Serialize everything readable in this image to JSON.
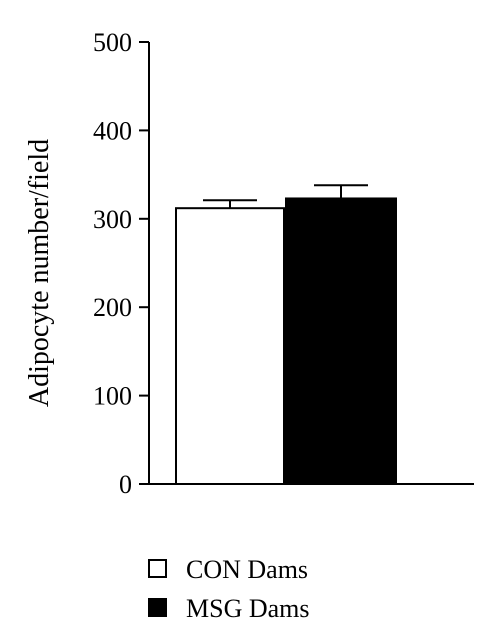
{
  "chart_data": {
    "type": "bar",
    "title": "",
    "xlabel": "",
    "ylabel": "Adipocyte number/field",
    "ylim": [
      0,
      500
    ],
    "yticks": [
      0,
      100,
      200,
      300,
      400,
      500
    ],
    "yticklabels": [
      "0",
      "100",
      "200",
      "300",
      "400",
      "500"
    ],
    "grid": false,
    "legend_placement": "bottom",
    "series": [
      {
        "name": "CON Dams",
        "value": 312,
        "error": 9,
        "fill": "#ffffff",
        "stroke": "#000000"
      },
      {
        "name": "MSG Dams",
        "value": 323,
        "error": 15,
        "fill": "#000000",
        "stroke": "#000000"
      }
    ]
  }
}
